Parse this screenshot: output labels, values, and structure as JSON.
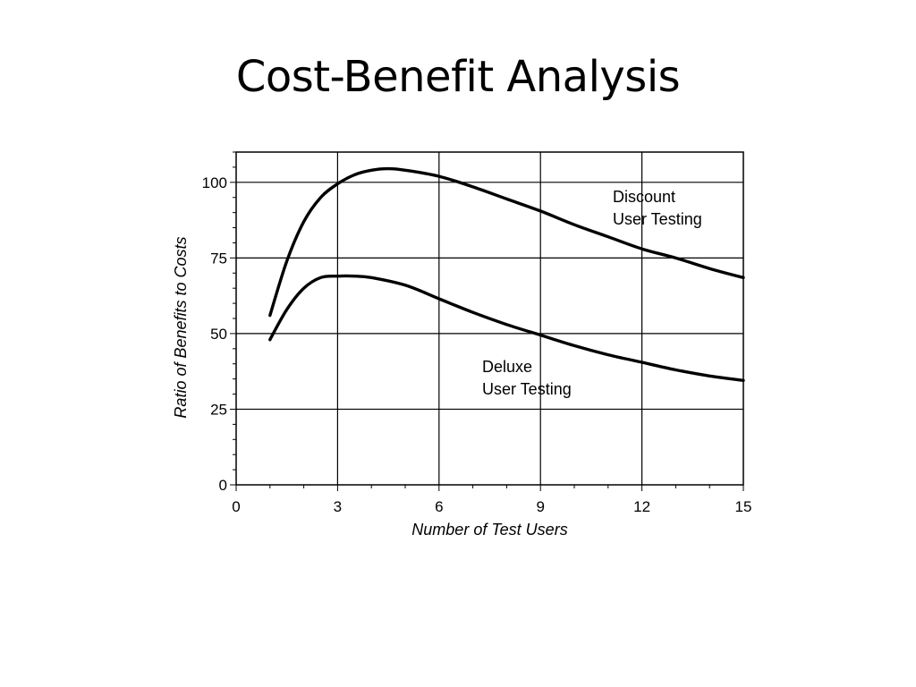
{
  "slide": {
    "title": "Cost-Benefit Analysis"
  },
  "chart_data": {
    "type": "line",
    "xlabel": "Number of Test Users",
    "ylabel": "Ratio of Benefits to Costs",
    "xlim": [
      0,
      15
    ],
    "ylim": [
      0,
      110
    ],
    "x_ticks": [
      0,
      3,
      6,
      9,
      12,
      15
    ],
    "y_ticks": [
      0,
      25,
      50,
      75,
      100
    ],
    "grid": true,
    "line_color": "#000000",
    "series": [
      {
        "name": "Discount User Testing",
        "label_lines": [
          "Discount",
          "User Testing"
        ],
        "x": [
          1,
          1.5,
          2,
          2.5,
          3,
          3.5,
          4,
          4.5,
          5,
          6,
          7,
          8,
          9,
          10,
          11,
          12,
          13,
          14,
          15
        ],
        "y": [
          56,
          74,
          87,
          95,
          99.5,
          102.5,
          104,
          104.5,
          104,
          102,
          98.5,
          94.5,
          90.5,
          86,
          82,
          78,
          75,
          71.5,
          68.5
        ]
      },
      {
        "name": "Deluxe User Testing",
        "label_lines": [
          "Deluxe",
          "User Testing"
        ],
        "x": [
          1,
          1.5,
          2,
          2.5,
          3,
          3.5,
          4,
          5,
          6,
          7,
          8,
          9,
          10,
          11,
          12,
          13,
          14,
          15
        ],
        "y": [
          48,
          58,
          65,
          68.5,
          69,
          69,
          68.5,
          66,
          61.5,
          57,
          53,
          49.5,
          46,
          43,
          40.5,
          38,
          36,
          34.5
        ]
      }
    ]
  }
}
